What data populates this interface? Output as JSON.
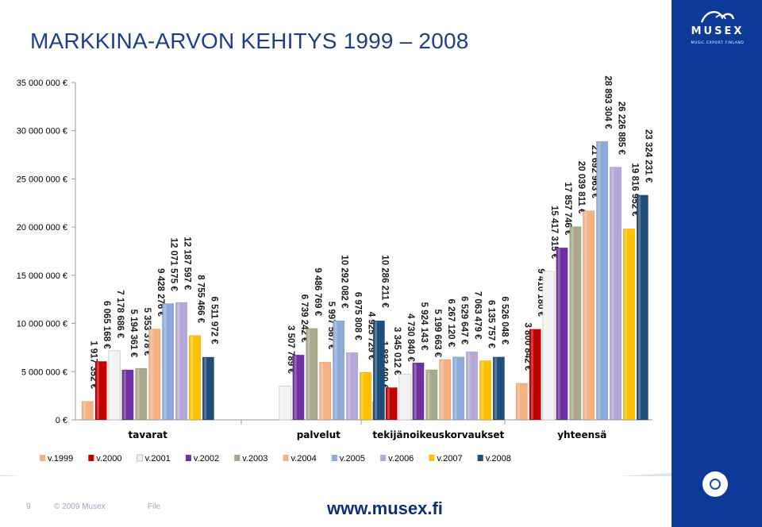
{
  "slide": {
    "title": "MARKKINA-ARVON KEHITYS 1999  –  2008",
    "page_number": "9",
    "copyright": "© 2009 Musex",
    "file_label": "File",
    "url": "www.musex.fi",
    "logo_text": "MUSEX",
    "logo_subtitle": "MUSIC EXPORT FINLAND",
    "sidebar_color": "#0d3a99",
    "badge_icon": "target-icon"
  },
  "chart_data": {
    "type": "bar",
    "title": "",
    "xlabel": "",
    "ylabel": "",
    "ylim": [
      0,
      35000000
    ],
    "yticks": [
      0,
      5000000,
      10000000,
      15000000,
      20000000,
      25000000,
      30000000,
      35000000
    ],
    "ytick_labels": [
      "0 €",
      "5 000 000 €",
      "10 000 000 €",
      "15 000 000 €",
      "20 000 000 €",
      "25 000 000 €",
      "30 000 000 €",
      "35 000 000 €"
    ],
    "grid": false,
    "legend_position": "bottom",
    "categories": [
      "tavarat",
      "palvelut",
      "tekijänoikeuskorvaukset",
      "yhteensä"
    ],
    "series": [
      {
        "name": "v.1999",
        "color": "#f4b183",
        "values": [
          1917352,
          null,
          1883490,
          3800842
        ],
        "labels": [
          "1 917 352 €",
          "",
          "1 883 490 €",
          "3 800 842 €"
        ]
      },
      {
        "name": "v.2000",
        "color": "#c00000",
        "values": [
          6065168,
          null,
          3345012,
          9410180
        ],
        "labels": [
          "6 065 168 €",
          "",
          "3 345 012 €",
          "9 410 180 €"
        ]
      },
      {
        "name": "v.2001",
        "color": "#f2f2f2",
        "values": [
          7178686,
          3507789,
          4730840,
          15417315
        ],
        "labels": [
          "7 178 686 €",
          "3 507 789 €",
          "4 730 840 €",
          "15 417 315 €"
        ]
      },
      {
        "name": "v.2002",
        "color": "#7030a0",
        "values": [
          5194361,
          6739242,
          5924143,
          17857746
        ],
        "labels": [
          "5 194 361 €",
          "6 739 242 €",
          "5 924 143 €",
          "17 857 746 €"
        ]
      },
      {
        "name": "v.2003",
        "color": "#a8a88a",
        "values": [
          5353378,
          9486769,
          5199663,
          20039811
        ],
        "labels": [
          "5 353 378 €",
          "9 486 769 €",
          "5 199 663 €",
          "20 039 811 €"
        ]
      },
      {
        "name": "v.2004",
        "color": "#f4b183",
        "values": [
          9428276,
          5997567,
          6267120,
          21692963
        ],
        "labels": [
          "9 428 276 €",
          "5 997 567 €",
          "6 267 120 €",
          "21 692 963 €"
        ]
      },
      {
        "name": "v.2005",
        "color": "#8eaadb",
        "values": [
          12071575,
          10292082,
          6529647,
          28893304
        ],
        "labels": [
          "12 071 575 €",
          "10 292 082 €",
          "6 529 647 €",
          "28 893 304 €"
        ]
      },
      {
        "name": "v.2006",
        "color": "#b4a7d6",
        "values": [
          12187597,
          6975808,
          7063479,
          26226885
        ],
        "labels": [
          "12 187 597 €",
          "6 975 808 €",
          "7 063 479 €",
          "26 226 885 €"
        ]
      },
      {
        "name": "v.2007",
        "color": "#ffc000",
        "values": [
          8755466,
          4925729,
          6135757,
          19816952
        ],
        "labels": [
          "8 755 466 €",
          "4 925 729 €",
          "6 135 757 €",
          "19 816 952 €"
        ]
      },
      {
        "name": "v.2008",
        "color": "#1f4e79",
        "values": [
          6511972,
          10286211,
          6526048,
          23324231
        ],
        "labels": [
          "6 511 972 €",
          "10 286 211 €",
          "6 526 048 €",
          "23 324 231 €"
        ]
      }
    ]
  }
}
